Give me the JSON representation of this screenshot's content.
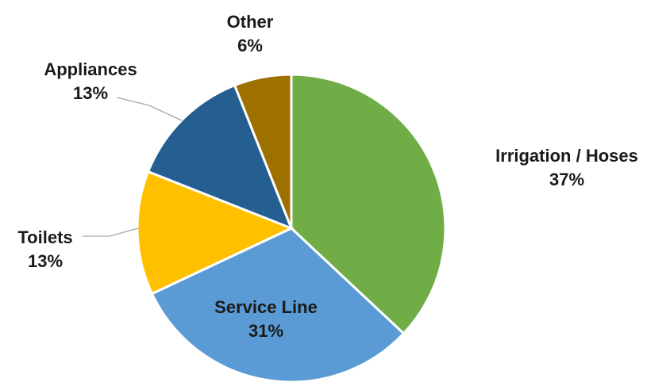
{
  "chart_data": {
    "type": "pie",
    "title": "",
    "start_angle_deg": 0,
    "direction": "clockwise",
    "slices": [
      {
        "name": "Irrigation / Hoses",
        "value": 37,
        "value_label": "37%",
        "color": "#70ad47"
      },
      {
        "name": "Service Line",
        "value": 31,
        "value_label": "31%",
        "color": "#5b9bd5"
      },
      {
        "name": "Toilets",
        "value": 13,
        "value_label": "13%",
        "color": "#ffc000"
      },
      {
        "name": "Appliances",
        "value": 13,
        "value_label": "13%",
        "color": "#255e91"
      },
      {
        "name": "Other",
        "value": 6,
        "value_label": "6%",
        "color": "#9e7000"
      }
    ],
    "legend": "none",
    "labels": "name-and-percent"
  }
}
